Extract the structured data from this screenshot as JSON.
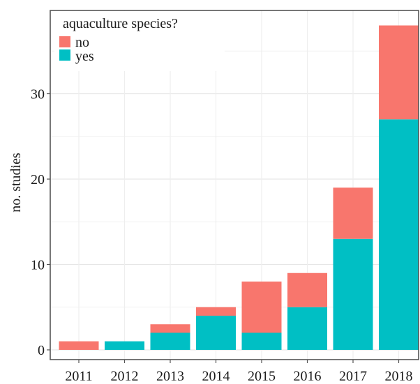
{
  "chart_data": {
    "type": "bar",
    "stacked": true,
    "categories": [
      "2011",
      "2012",
      "2013",
      "2014",
      "2015",
      "2016",
      "2017",
      "2018"
    ],
    "series": [
      {
        "name": "yes",
        "color": "#00BFC4",
        "values": [
          0,
          1,
          2,
          4,
          2,
          5,
          13,
          27
        ]
      },
      {
        "name": "no",
        "color": "#F8766D",
        "values": [
          1,
          0,
          1,
          1,
          6,
          4,
          6,
          11
        ]
      }
    ],
    "title": "",
    "xlabel": "",
    "ylabel": "no. studies",
    "ylim": [
      0,
      40
    ],
    "yticks": [
      0,
      10,
      20,
      30
    ],
    "legend": {
      "title": "aquaculture species?",
      "placement": "top-left",
      "entries": [
        {
          "label": "no",
          "color": "#F8766D"
        },
        {
          "label": "yes",
          "color": "#00BFC4"
        }
      ]
    },
    "grid": true,
    "panel_border": true
  }
}
